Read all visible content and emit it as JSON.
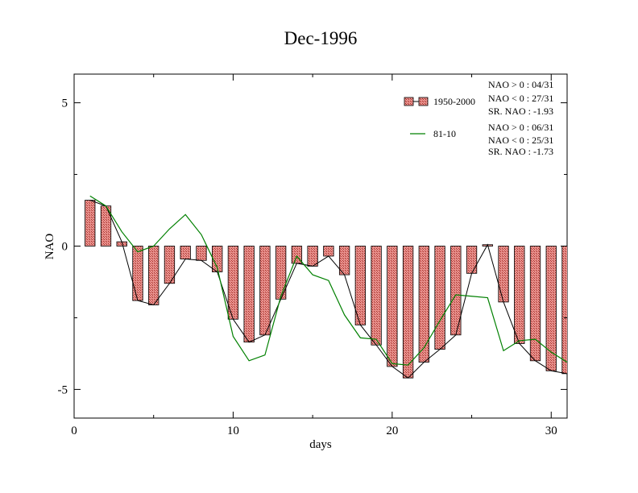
{
  "chart_data": {
    "type": "bar",
    "title": "Dec-1996",
    "xlabel": "days",
    "ylabel": "NAO",
    "xlim": [
      0,
      31
    ],
    "ylim": [
      -6,
      6
    ],
    "x_ticks": [
      0,
      10,
      20,
      30
    ],
    "y_ticks": [
      5,
      0,
      -5
    ],
    "x_tick_labels": [
      "0",
      "10",
      "20",
      "30"
    ],
    "y_tick_labels": [
      "5",
      "0",
      "-5"
    ],
    "colors": {
      "bar_fill": "#e8908c",
      "bar_hatch": "#b03a34",
      "bar_line": "#000000",
      "line_81_10": "#008000"
    },
    "series": [
      {
        "name": "1950-2000",
        "type": "bar",
        "x": [
          1,
          2,
          3,
          4,
          5,
          6,
          7,
          8,
          9,
          10,
          11,
          12,
          13,
          14,
          15,
          16,
          17,
          18,
          19,
          20,
          21,
          22,
          23,
          24,
          25,
          26,
          27,
          28,
          29,
          30,
          31
        ],
        "values": [
          1.6,
          1.4,
          0.15,
          -1.9,
          -2.05,
          -1.3,
          -0.45,
          -0.5,
          -0.9,
          -2.55,
          -3.35,
          -3.1,
          -1.85,
          -0.6,
          -0.7,
          -0.35,
          -1.0,
          -2.75,
          -3.45,
          -4.2,
          -4.6,
          -4.05,
          -3.6,
          -3.1,
          -0.95,
          0.05,
          -1.95,
          -3.4,
          -4.0,
          -4.35,
          -4.45
        ]
      },
      {
        "name": "81-10",
        "type": "line",
        "x": [
          1,
          2,
          3,
          4,
          5,
          6,
          7,
          8,
          9,
          10,
          11,
          12,
          13,
          14,
          15,
          16,
          17,
          18,
          19,
          20,
          21,
          22,
          23,
          24,
          25,
          26,
          27,
          28,
          29,
          30,
          31
        ],
        "values": [
          1.75,
          1.4,
          0.5,
          -0.2,
          0.0,
          0.6,
          1.1,
          0.4,
          -0.75,
          -3.15,
          -4.0,
          -3.8,
          -1.75,
          -0.35,
          -1.0,
          -1.2,
          -2.4,
          -3.2,
          -3.25,
          -4.1,
          -4.15,
          -3.55,
          -2.6,
          -1.7,
          -1.75,
          -1.8,
          -3.65,
          -3.3,
          -3.25,
          -3.7,
          -4.05
        ]
      }
    ],
    "legend": {
      "placement": "top-right",
      "entries": [
        {
          "label": "1950-2000",
          "stats": [
            "NAO > 0 : 04/31",
            "NAO < 0 : 27/31",
            "SR. NAO : -1.93"
          ]
        },
        {
          "label": "81-10",
          "stats": [
            "NAO > 0 : 06/31",
            "NAO < 0 : 25/31",
            "SR. NAO : -1.73"
          ]
        }
      ]
    },
    "grid": false
  }
}
